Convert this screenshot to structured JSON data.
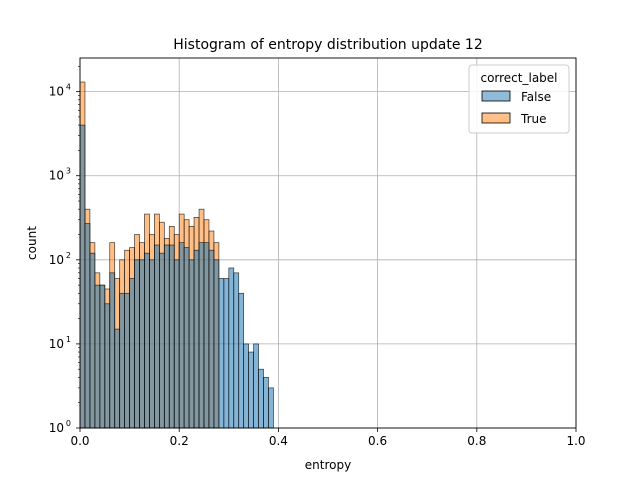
{
  "chart_data": {
    "type": "bar",
    "title": "Histogram of entropy distribution update 12",
    "xlabel": "entropy",
    "ylabel": "count",
    "xlim": [
      0.0,
      1.0
    ],
    "ylim_log10": [
      0,
      4.4
    ],
    "yscale": "log",
    "grid": true,
    "bin_width": 0.01,
    "x_ticks": [
      {
        "value": 0.0,
        "label": "0.0"
      },
      {
        "value": 0.2,
        "label": "0.2"
      },
      {
        "value": 0.4,
        "label": "0.4"
      },
      {
        "value": 0.6,
        "label": "0.6"
      },
      {
        "value": 0.8,
        "label": "0.8"
      },
      {
        "value": 1.0,
        "label": "1.0"
      }
    ],
    "y_ticks": [
      {
        "exp": 0,
        "base": "10",
        "sup": "0"
      },
      {
        "exp": 1,
        "base": "10",
        "sup": "1"
      },
      {
        "exp": 2,
        "base": "10",
        "sup": "2"
      },
      {
        "exp": 3,
        "base": "10",
        "sup": "3"
      },
      {
        "exp": 4,
        "base": "10",
        "sup": "4"
      }
    ],
    "legend": {
      "title": "correct_label",
      "placement": "top-right",
      "entries": [
        {
          "label": "False",
          "color": "#1f77b4"
        },
        {
          "label": "True",
          "color": "#ff7f0e"
        }
      ]
    },
    "series": [
      {
        "name": "True",
        "color": "#ff7f0e",
        "bin_starts": [
          0.0,
          0.01,
          0.02,
          0.03,
          0.04,
          0.05,
          0.06,
          0.07,
          0.08,
          0.09,
          0.1,
          0.11,
          0.12,
          0.13,
          0.14,
          0.15,
          0.16,
          0.17,
          0.18,
          0.19,
          0.2,
          0.21,
          0.22,
          0.23,
          0.24,
          0.25,
          0.26,
          0.27
        ],
        "values": [
          13000,
          400,
          160,
          70,
          50,
          45,
          160,
          60,
          100,
          130,
          140,
          200,
          160,
          350,
          200,
          350,
          280,
          180,
          250,
          200,
          350,
          300,
          250,
          320,
          400,
          300,
          220,
          160
        ]
      },
      {
        "name": "False",
        "color": "#1f77b4",
        "bin_starts": [
          0.0,
          0.01,
          0.02,
          0.03,
          0.04,
          0.05,
          0.06,
          0.07,
          0.08,
          0.09,
          0.1,
          0.11,
          0.12,
          0.13,
          0.14,
          0.15,
          0.16,
          0.17,
          0.18,
          0.19,
          0.2,
          0.21,
          0.22,
          0.23,
          0.24,
          0.25,
          0.26,
          0.27,
          0.28,
          0.29,
          0.3,
          0.31,
          0.32,
          0.33,
          0.34,
          0.35,
          0.36,
          0.37,
          0.38
        ],
        "values": [
          4000,
          270,
          120,
          50,
          50,
          30,
          70,
          15,
          40,
          40,
          60,
          100,
          100,
          120,
          100,
          150,
          120,
          150,
          150,
          100,
          160,
          140,
          100,
          130,
          160,
          160,
          130,
          100,
          60,
          60,
          80,
          70,
          40,
          10,
          8,
          10,
          5,
          4,
          3
        ]
      }
    ]
  }
}
